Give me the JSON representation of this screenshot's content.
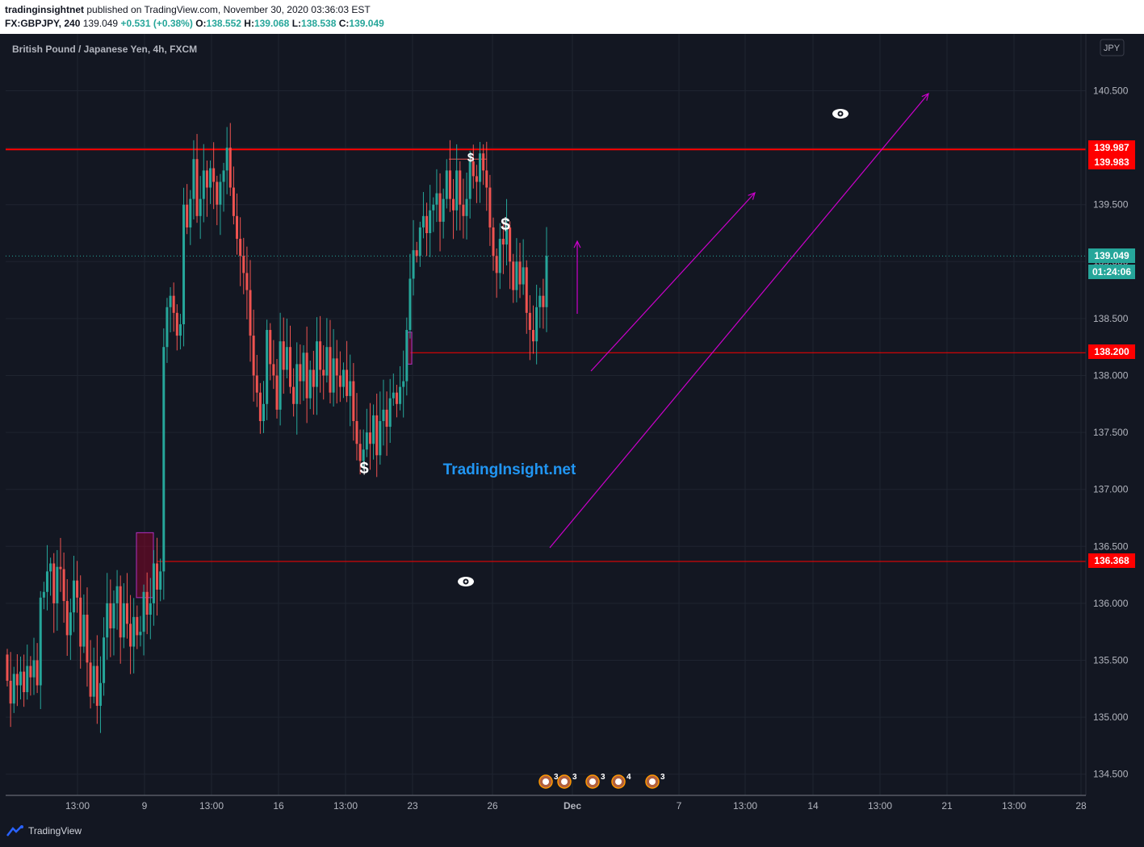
{
  "header": {
    "publisher": "tradinginsightnet",
    "published_text": "published on TradingView.com, November 30, 2020 03:36:03 EST",
    "symbol": "FX:GBPJPY, 240",
    "last": "139.049",
    "change": "+0.531 (+0.38%)",
    "o_label": "O:",
    "o": "138.552",
    "h_label": "H:",
    "h": "139.068",
    "l_label": "L:",
    "l": "138.538",
    "c_label": "C:",
    "c": "139.049"
  },
  "chart_title": "British Pound / Japanese Yen, 4h, FXCM",
  "currency_badge": "JPY",
  "watermark": "TradingInsight.net",
  "footer": {
    "brand": "TradingView"
  },
  "colors": {
    "up": "#26a69a",
    "down": "#ef5350",
    "background": "#131722",
    "grid": "#1f2430",
    "level_line": "#ff0000",
    "arrow": "#cc00cc"
  },
  "chart_data": {
    "type": "candlestick",
    "symbol": "GBPJPY",
    "timeframe": "4h",
    "ylim": [
      134.4,
      140.85
    ],
    "y_ticks": [
      "134.500",
      "135.000",
      "135.500",
      "136.000",
      "136.500",
      "137.000",
      "137.500",
      "138.000",
      "138.500",
      "139.000",
      "139.500",
      "140.000",
      "140.500"
    ],
    "x_ticks": [
      "13:00",
      "9",
      "13:00",
      "16",
      "13:00",
      "23",
      "26",
      "Dec",
      "7",
      "13:00",
      "14",
      "13:00",
      "21",
      "13:00",
      "28"
    ],
    "price_labels": [
      {
        "text": "139.987",
        "value": 139.987,
        "color": "#ff0000"
      },
      {
        "text": "139.983",
        "value": 139.983,
        "color": "#ff0000"
      },
      {
        "text": "138.200",
        "value": 138.2,
        "color": "#ff0000"
      },
      {
        "text": "136.368",
        "value": 136.368,
        "color": "#ff0000"
      },
      {
        "text": "139.049",
        "value": 139.049,
        "color": "#26a69a"
      },
      {
        "text": "01:24:06",
        "value": 138.9,
        "color": "#26a69a"
      }
    ],
    "levels": [
      139.985,
      138.2,
      136.368
    ],
    "last_price": 139.049,
    "countdown": "01:24:06",
    "annotations": [
      "$",
      "$",
      "$"
    ],
    "event_badges": [
      "3",
      "3",
      "3",
      "4",
      "3"
    ],
    "closes": [
      135.32,
      135.12,
      135.38,
      135.28,
      135.4,
      135.22,
      135.45,
      135.35,
      135.5,
      135.28,
      136.05,
      136.1,
      136.28,
      136.35,
      136.0,
      136.32,
      136.3,
      136.02,
      135.72,
      135.92,
      136.2,
      136.05,
      135.62,
      135.9,
      135.48,
      135.18,
      135.45,
      135.1,
      135.3,
      135.7,
      136.0,
      135.78,
      136.0,
      136.15,
      135.7,
      136.0,
      135.82,
      135.62,
      135.88,
      135.72,
      135.75,
      136.1,
      135.9,
      136.0,
      136.35,
      136.12,
      136.28,
      138.25,
      138.6,
      138.7,
      138.55,
      138.35,
      138.45,
      139.5,
      139.3,
      139.55,
      139.9,
      139.4,
      139.55,
      139.8,
      139.65,
      139.82,
      139.7,
      139.5,
      139.7,
      139.8,
      140.0,
      139.65,
      139.4,
      139.2,
      139.05,
      138.9,
      138.75,
      138.35,
      138.0,
      137.85,
      137.6,
      137.75,
      138.4,
      138.1,
      138.0,
      137.7,
      138.3,
      138.05,
      138.25,
      137.9,
      137.75,
      138.1,
      137.95,
      138.2,
      137.8,
      138.05,
      137.9,
      138.3,
      138.05,
      138.0,
      138.25,
      137.85,
      138.15,
      138.0,
      137.9,
      138.05,
      137.82,
      137.95,
      137.6,
      137.4,
      137.25,
      137.35,
      137.5,
      137.4,
      137.65,
      137.3,
      137.6,
      137.7,
      137.55,
      137.8,
      137.85,
      137.75,
      137.9,
      137.95,
      138.4,
      138.85,
      139.1,
      139.05,
      139.3,
      139.4,
      139.25,
      139.45,
      139.5,
      139.6,
      139.35,
      139.55,
      139.8,
      139.55,
      139.45,
      139.8,
      139.5,
      139.4,
      139.55,
      139.88,
      139.75,
      139.7,
      139.95,
      139.8,
      139.65,
      139.3,
      139.05,
      138.9,
      139.2,
      139.15,
      139.3,
      139.0,
      138.75,
      139.0,
      138.8,
      138.95,
      138.55,
      138.4,
      138.3,
      138.6,
      138.7,
      138.6,
      139.05
    ]
  }
}
